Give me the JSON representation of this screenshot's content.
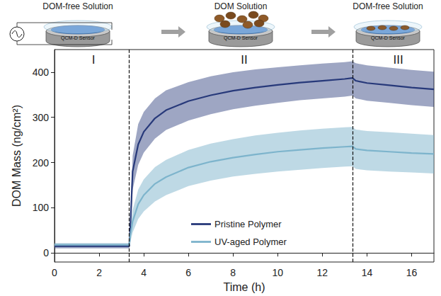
{
  "chart_data": {
    "type": "line",
    "x_label": "Time (h)",
    "y_label": "DOM Mass (ng/cm²)",
    "x": [
      0,
      1,
      2,
      3,
      3.35,
      3.4,
      3.5,
      3.75,
      4,
      4.5,
      5,
      6,
      7,
      8,
      9,
      10,
      11,
      12,
      13,
      13.35,
      13.5,
      14,
      15,
      16,
      17
    ],
    "series": [
      {
        "name": "Pristine Polymer",
        "color": "#27397a",
        "values": [
          15,
          15,
          15,
          15,
          15,
          60,
          180,
          240,
          268,
          298,
          316,
          336,
          349,
          359,
          366,
          372,
          377,
          381,
          385,
          387,
          381,
          376,
          371,
          366,
          362
        ],
        "lower": [
          10,
          10,
          10,
          10,
          10,
          40,
          140,
          195,
          222,
          253,
          272,
          293,
          307,
          318,
          326,
          332,
          338,
          342,
          346,
          348,
          342,
          337,
          332,
          327,
          323
        ],
        "upper": [
          20,
          20,
          20,
          20,
          20,
          80,
          215,
          285,
          312,
          342,
          360,
          378,
          391,
          400,
          406,
          411,
          415,
          419,
          422,
          424,
          420,
          415,
          410,
          405,
          401
        ]
      },
      {
        "name": "UV-aged Polymer",
        "color": "#7db4cc",
        "values": [
          18,
          18,
          18,
          18,
          18,
          40,
          70,
          108,
          128,
          153,
          168,
          189,
          202,
          211,
          218,
          224,
          228,
          232,
          235,
          236,
          230,
          227,
          224,
          221,
          219
        ],
        "lower": [
          14,
          14,
          14,
          14,
          14,
          25,
          45,
          75,
          92,
          114,
          128,
          148,
          160,
          169,
          175,
          180,
          184,
          188,
          191,
          192,
          186,
          183,
          180,
          178,
          176
        ],
        "upper": [
          22,
          22,
          22,
          22,
          22,
          55,
          95,
          140,
          163,
          190,
          206,
          228,
          242,
          252,
          260,
          266,
          271,
          275,
          278,
          279,
          273,
          270,
          267,
          264,
          261
        ]
      }
    ],
    "regions": [
      {
        "label": "I",
        "x": [
          0,
          3.35
        ]
      },
      {
        "label": "II",
        "x": [
          3.35,
          13.35
        ]
      },
      {
        "label": "III",
        "x": [
          13.35,
          17
        ]
      }
    ],
    "xlim": [
      0,
      17
    ],
    "xticks": [
      0,
      2,
      4,
      6,
      8,
      10,
      12,
      14,
      16
    ],
    "ylim": [
      -20,
      450
    ],
    "yticks": [
      0,
      100,
      200,
      300,
      400
    ],
    "grid": false,
    "legend": "lower center"
  },
  "diagram": {
    "panels": [
      {
        "title": "DOM-free Solution",
        "sensor": "QCM-D Sensor"
      },
      {
        "title": "DOM Solution",
        "sensor": "QCM-D Sensor"
      },
      {
        "title": "DOM-free Solution",
        "sensor": "QCM-D Sensor"
      }
    ]
  }
}
